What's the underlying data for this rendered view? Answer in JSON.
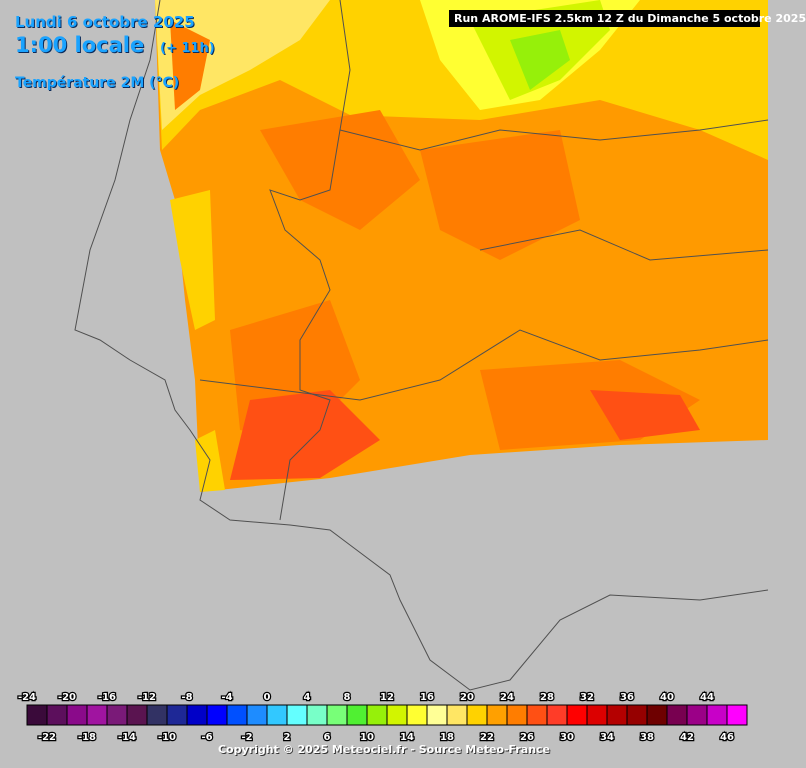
{
  "header": {
    "date": "Lundi 6 octobre 2025",
    "time": "1:00 locale",
    "offset": "(+ 11h)",
    "parameter": "Température 2M (°C)",
    "run": "Run AROME-IFS 2.5km 12 Z du Dimanche 5 octobre 2025"
  },
  "legend": {
    "ticks": [
      -24,
      -22,
      -20,
      -18,
      -16,
      -14,
      -12,
      -10,
      -8,
      -6,
      -4,
      -2,
      0,
      2,
      4,
      6,
      8,
      10,
      12,
      14,
      16,
      18,
      20,
      22,
      24,
      26,
      28,
      30,
      32,
      34,
      36,
      38,
      40,
      42,
      44,
      46
    ],
    "colors": [
      "#3a0a3a",
      "#5c0f5c",
      "#8a0a8a",
      "#a014a0",
      "#7a1a78",
      "#5a1450",
      "#323264",
      "#1e2896",
      "#0000c8",
      "#0000ff",
      "#0050ff",
      "#1e8cff",
      "#32c8ff",
      "#64ffff",
      "#78ffc8",
      "#78ff78",
      "#50f032",
      "#96f00a",
      "#d2f500",
      "#ffff32",
      "#ffff96",
      "#ffe664",
      "#ffd200",
      "#ffa000",
      "#ff7d00",
      "#ff5014",
      "#ff3c28",
      "#ff0000",
      "#dc0000",
      "#b40000",
      "#960000",
      "#6e0000",
      "#780050",
      "#9b0087",
      "#c800c8",
      "#ff00ff"
    ]
  },
  "footer": {
    "copyright": "Copyright © 2025 Meteociel.fr - Source Meteo-France"
  }
}
